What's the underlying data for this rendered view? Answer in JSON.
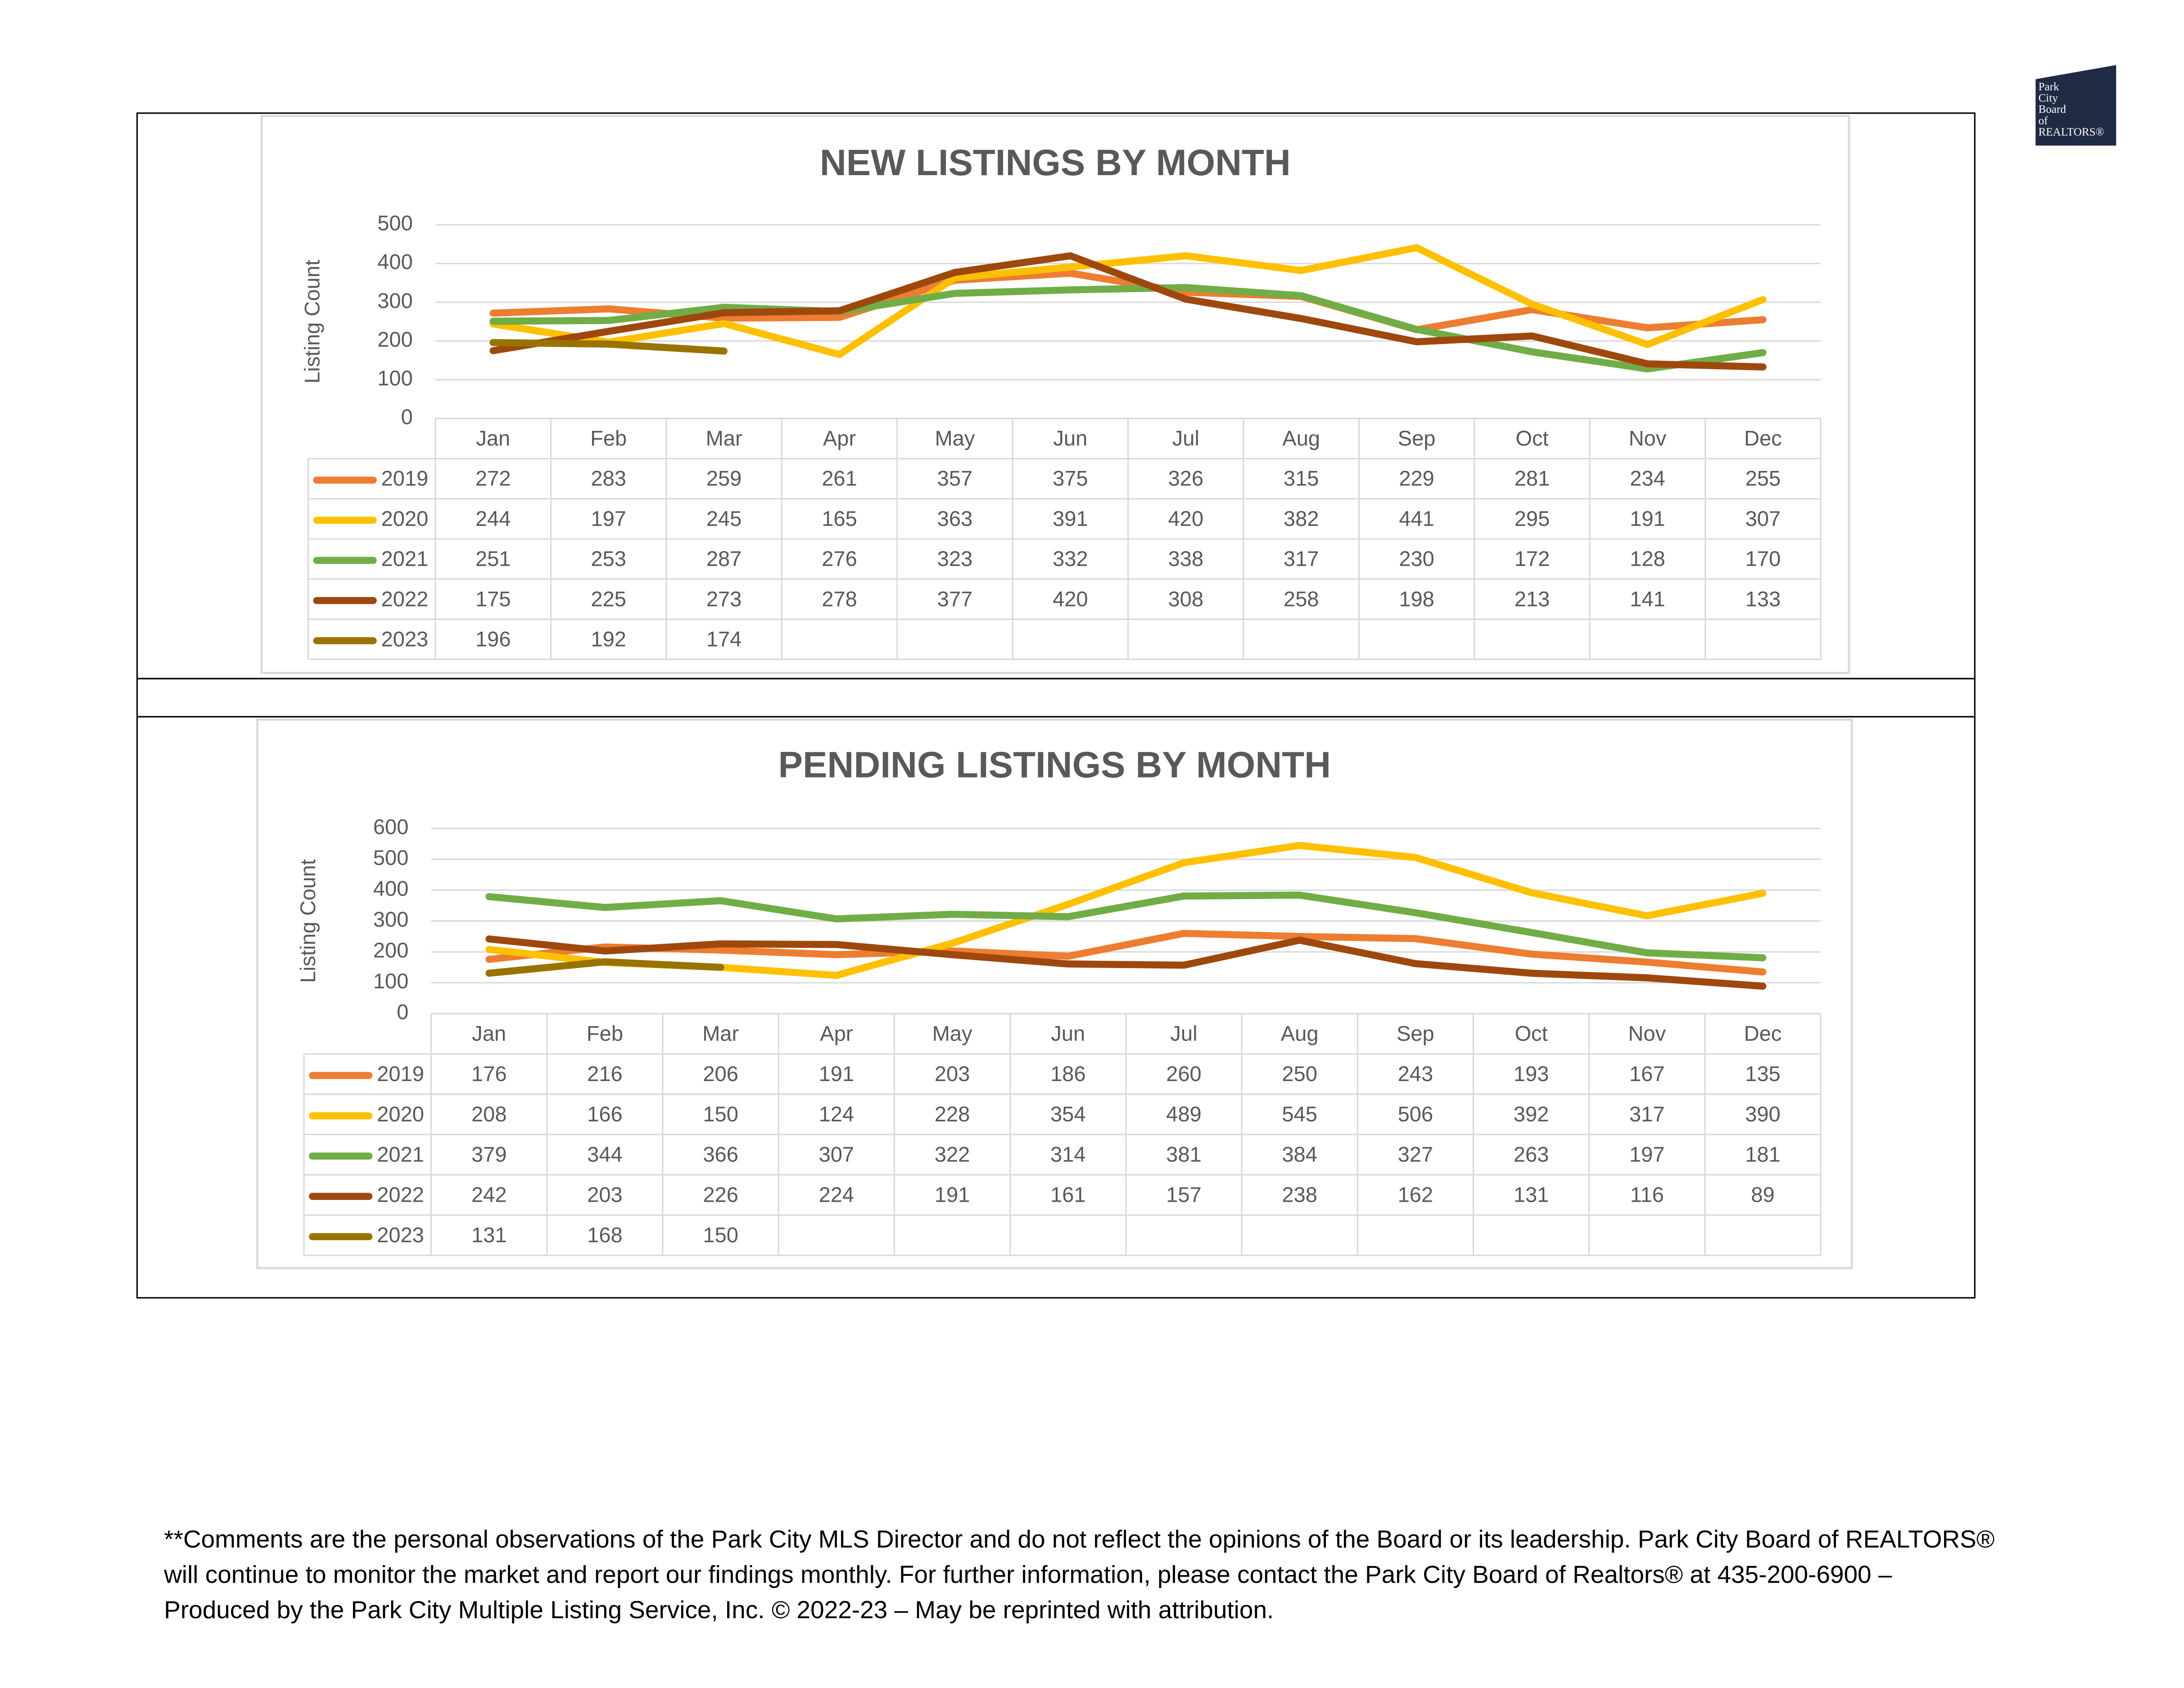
{
  "chart_data": [
    {
      "type": "line",
      "title": "NEW LISTINGS BY MONTH",
      "y_label": "Listing Count",
      "categories": [
        "Jan",
        "Feb",
        "Mar",
        "Apr",
        "May",
        "Jun",
        "Jul",
        "Aug",
        "Sep",
        "Oct",
        "Nov",
        "Dec"
      ],
      "ylim": [
        0,
        500
      ],
      "yticks": [
        0,
        100,
        200,
        300,
        400,
        500
      ],
      "grid": true,
      "series": [
        {
          "name": "2019",
          "color": "#ed7d31",
          "values": [
            272,
            283,
            259,
            261,
            357,
            375,
            326,
            315,
            229,
            281,
            234,
            255
          ]
        },
        {
          "name": "2020",
          "color": "#ffc000",
          "values": [
            244,
            197,
            245,
            165,
            363,
            391,
            420,
            382,
            441,
            295,
            191,
            307
          ]
        },
        {
          "name": "2021",
          "color": "#70ad47",
          "values": [
            251,
            253,
            287,
            276,
            323,
            332,
            338,
            317,
            230,
            172,
            128,
            170
          ]
        },
        {
          "name": "2022",
          "color": "#9e480e",
          "values": [
            175,
            225,
            273,
            278,
            377,
            420,
            308,
            258,
            198,
            213,
            141,
            133
          ]
        },
        {
          "name": "2023",
          "color": "#997300",
          "values": [
            196,
            192,
            174,
            null,
            null,
            null,
            null,
            null,
            null,
            null,
            null,
            null
          ]
        }
      ]
    },
    {
      "type": "line",
      "title": "PENDING LISTINGS BY MONTH",
      "y_label": "Listing Count",
      "categories": [
        "Jan",
        "Feb",
        "Mar",
        "Apr",
        "May",
        "Jun",
        "Jul",
        "Aug",
        "Sep",
        "Oct",
        "Nov",
        "Dec"
      ],
      "ylim": [
        0,
        600
      ],
      "yticks": [
        0,
        100,
        200,
        300,
        400,
        500,
        600
      ],
      "grid": true,
      "series": [
        {
          "name": "2019",
          "color": "#ed7d31",
          "values": [
            176,
            216,
            206,
            191,
            203,
            186,
            260,
            250,
            243,
            193,
            167,
            135
          ]
        },
        {
          "name": "2020",
          "color": "#ffc000",
          "values": [
            208,
            166,
            150,
            124,
            228,
            354,
            489,
            545,
            506,
            392,
            317,
            390
          ]
        },
        {
          "name": "2021",
          "color": "#70ad47",
          "values": [
            379,
            344,
            366,
            307,
            322,
            314,
            381,
            384,
            327,
            263,
            197,
            181
          ]
        },
        {
          "name": "2022",
          "color": "#9e480e",
          "values": [
            242,
            203,
            226,
            224,
            191,
            161,
            157,
            238,
            162,
            131,
            116,
            89
          ]
        },
        {
          "name": "2023",
          "color": "#997300",
          "values": [
            131,
            168,
            150,
            null,
            null,
            null,
            null,
            null,
            null,
            null,
            null,
            null
          ]
        }
      ]
    }
  ],
  "logo": [
    "Park",
    "City",
    "Board",
    "of",
    "REALTORS®"
  ],
  "footer": [
    "**Comments are the personal observations of the Park City MLS Director and do not reflect the opinions of the Board or its leadership. Park City Board of REALTORS®",
    "will continue to monitor the market and report our findings monthly. For further information, please contact the Park City Board of Realtors® at 435-200-6900 –",
    "Produced by the Park City Multiple Listing Service, Inc. © 2022-23 – May be reprinted with attribution."
  ]
}
